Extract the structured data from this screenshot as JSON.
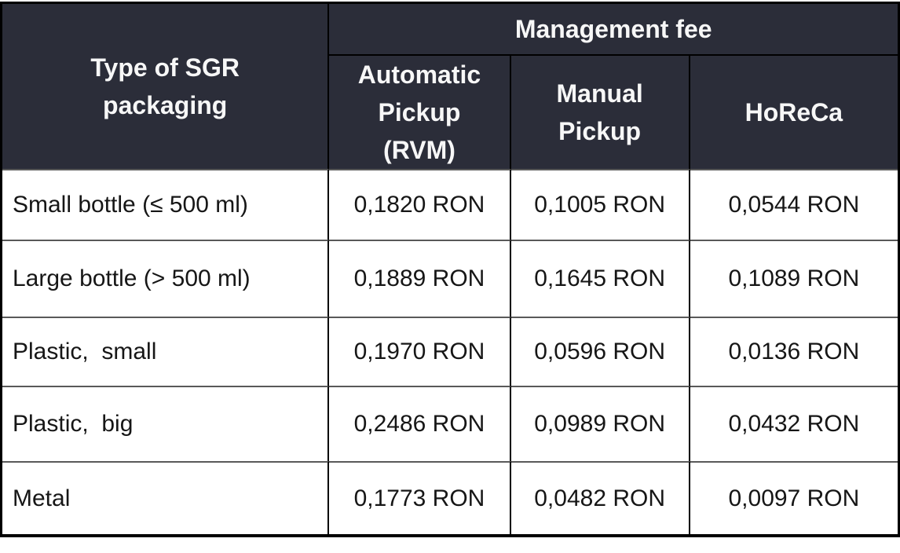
{
  "table": {
    "row_header": "Type of SGR\npackaging",
    "group_header": "Management fee",
    "columns": [
      {
        "label": "Automatic\nPickup\n(RVM)"
      },
      {
        "label": "Manual\nPickup"
      },
      {
        "label": "HoReCa"
      }
    ],
    "rows": [
      {
        "label": "Small bottle (≤ 500 ml)",
        "values": [
          "0,1820 RON",
          "0,1005 RON",
          "0,0544 RON"
        ]
      },
      {
        "label": "Large bottle (> 500 ml)",
        "values": [
          "0,1889 RON",
          "0,1645 RON",
          "0,1089 RON"
        ]
      },
      {
        "label": "Plastic,  small",
        "values": [
          "0,1970 RON",
          "0,0596 RON",
          "0,0136 RON"
        ]
      },
      {
        "label": "Plastic,  big",
        "values": [
          "0,2486 RON",
          "0,0989 RON",
          "0,0432 RON"
        ]
      },
      {
        "label": "Metal",
        "values": [
          "0,1773 RON",
          "0,0482 RON",
          "0,0097 RON"
        ]
      }
    ],
    "currency": "RON",
    "colors": {
      "header_bg": "#2b2d39",
      "header_text": "#f7f7f7",
      "body_text": "#161616",
      "grid_dark": "#000000",
      "grid_gray": "#595959"
    }
  }
}
